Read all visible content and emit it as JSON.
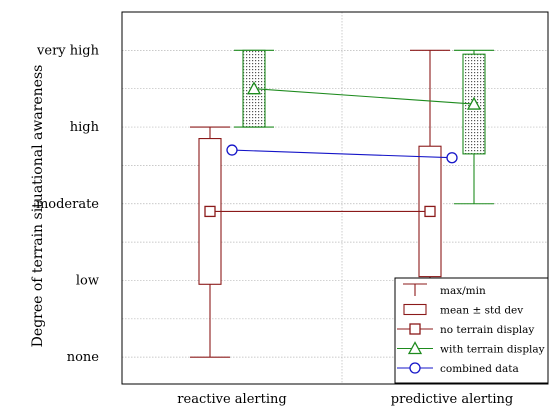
{
  "chart_data": {
    "type": "box",
    "categories": [
      "reactive alerting",
      "predictive alerting"
    ],
    "ylabel": "Degree of terrain situational awareness",
    "xlabel": "",
    "y_scale_labels": [
      "none",
      "low",
      "moderate",
      "high",
      "very high"
    ],
    "y_scale_values": [
      0,
      1,
      2,
      3,
      4
    ],
    "ylim": [
      -0.35,
      4.5
    ],
    "grid": true,
    "legend_position": "bottom-right",
    "legend": [
      {
        "label": "max/min",
        "marker": "whisker"
      },
      {
        "label": "mean ± std dev",
        "marker": "box"
      },
      {
        "label": "no terrain display",
        "marker": "square"
      },
      {
        "label": "with terrain display",
        "marker": "triangle"
      },
      {
        "label": "combined data",
        "marker": "circle"
      }
    ],
    "series": [
      {
        "key": "no_terrain",
        "color": "#8B1A1A",
        "marker": "square",
        "means": [
          1.9,
          1.9
        ],
        "std_box": [
          [
            0.95,
            2.85
          ],
          [
            1.05,
            2.75
          ]
        ],
        "minmax": [
          [
            0.0,
            3.0
          ],
          [
            1.0,
            4.0
          ]
        ],
        "box_fill": "none"
      },
      {
        "key": "with_terrain",
        "color": "#1E8B1E",
        "marker": "triangle",
        "means": [
          3.5,
          3.3
        ],
        "std_box": [
          [
            3.0,
            4.0
          ],
          [
            2.65,
            3.95
          ]
        ],
        "minmax": [
          [
            3.0,
            4.0
          ],
          [
            2.0,
            4.0
          ]
        ],
        "box_fill": "dotted"
      },
      {
        "key": "combined",
        "color": "#1515C8",
        "marker": "circle",
        "means": [
          2.7,
          2.6
        ]
      }
    ]
  }
}
